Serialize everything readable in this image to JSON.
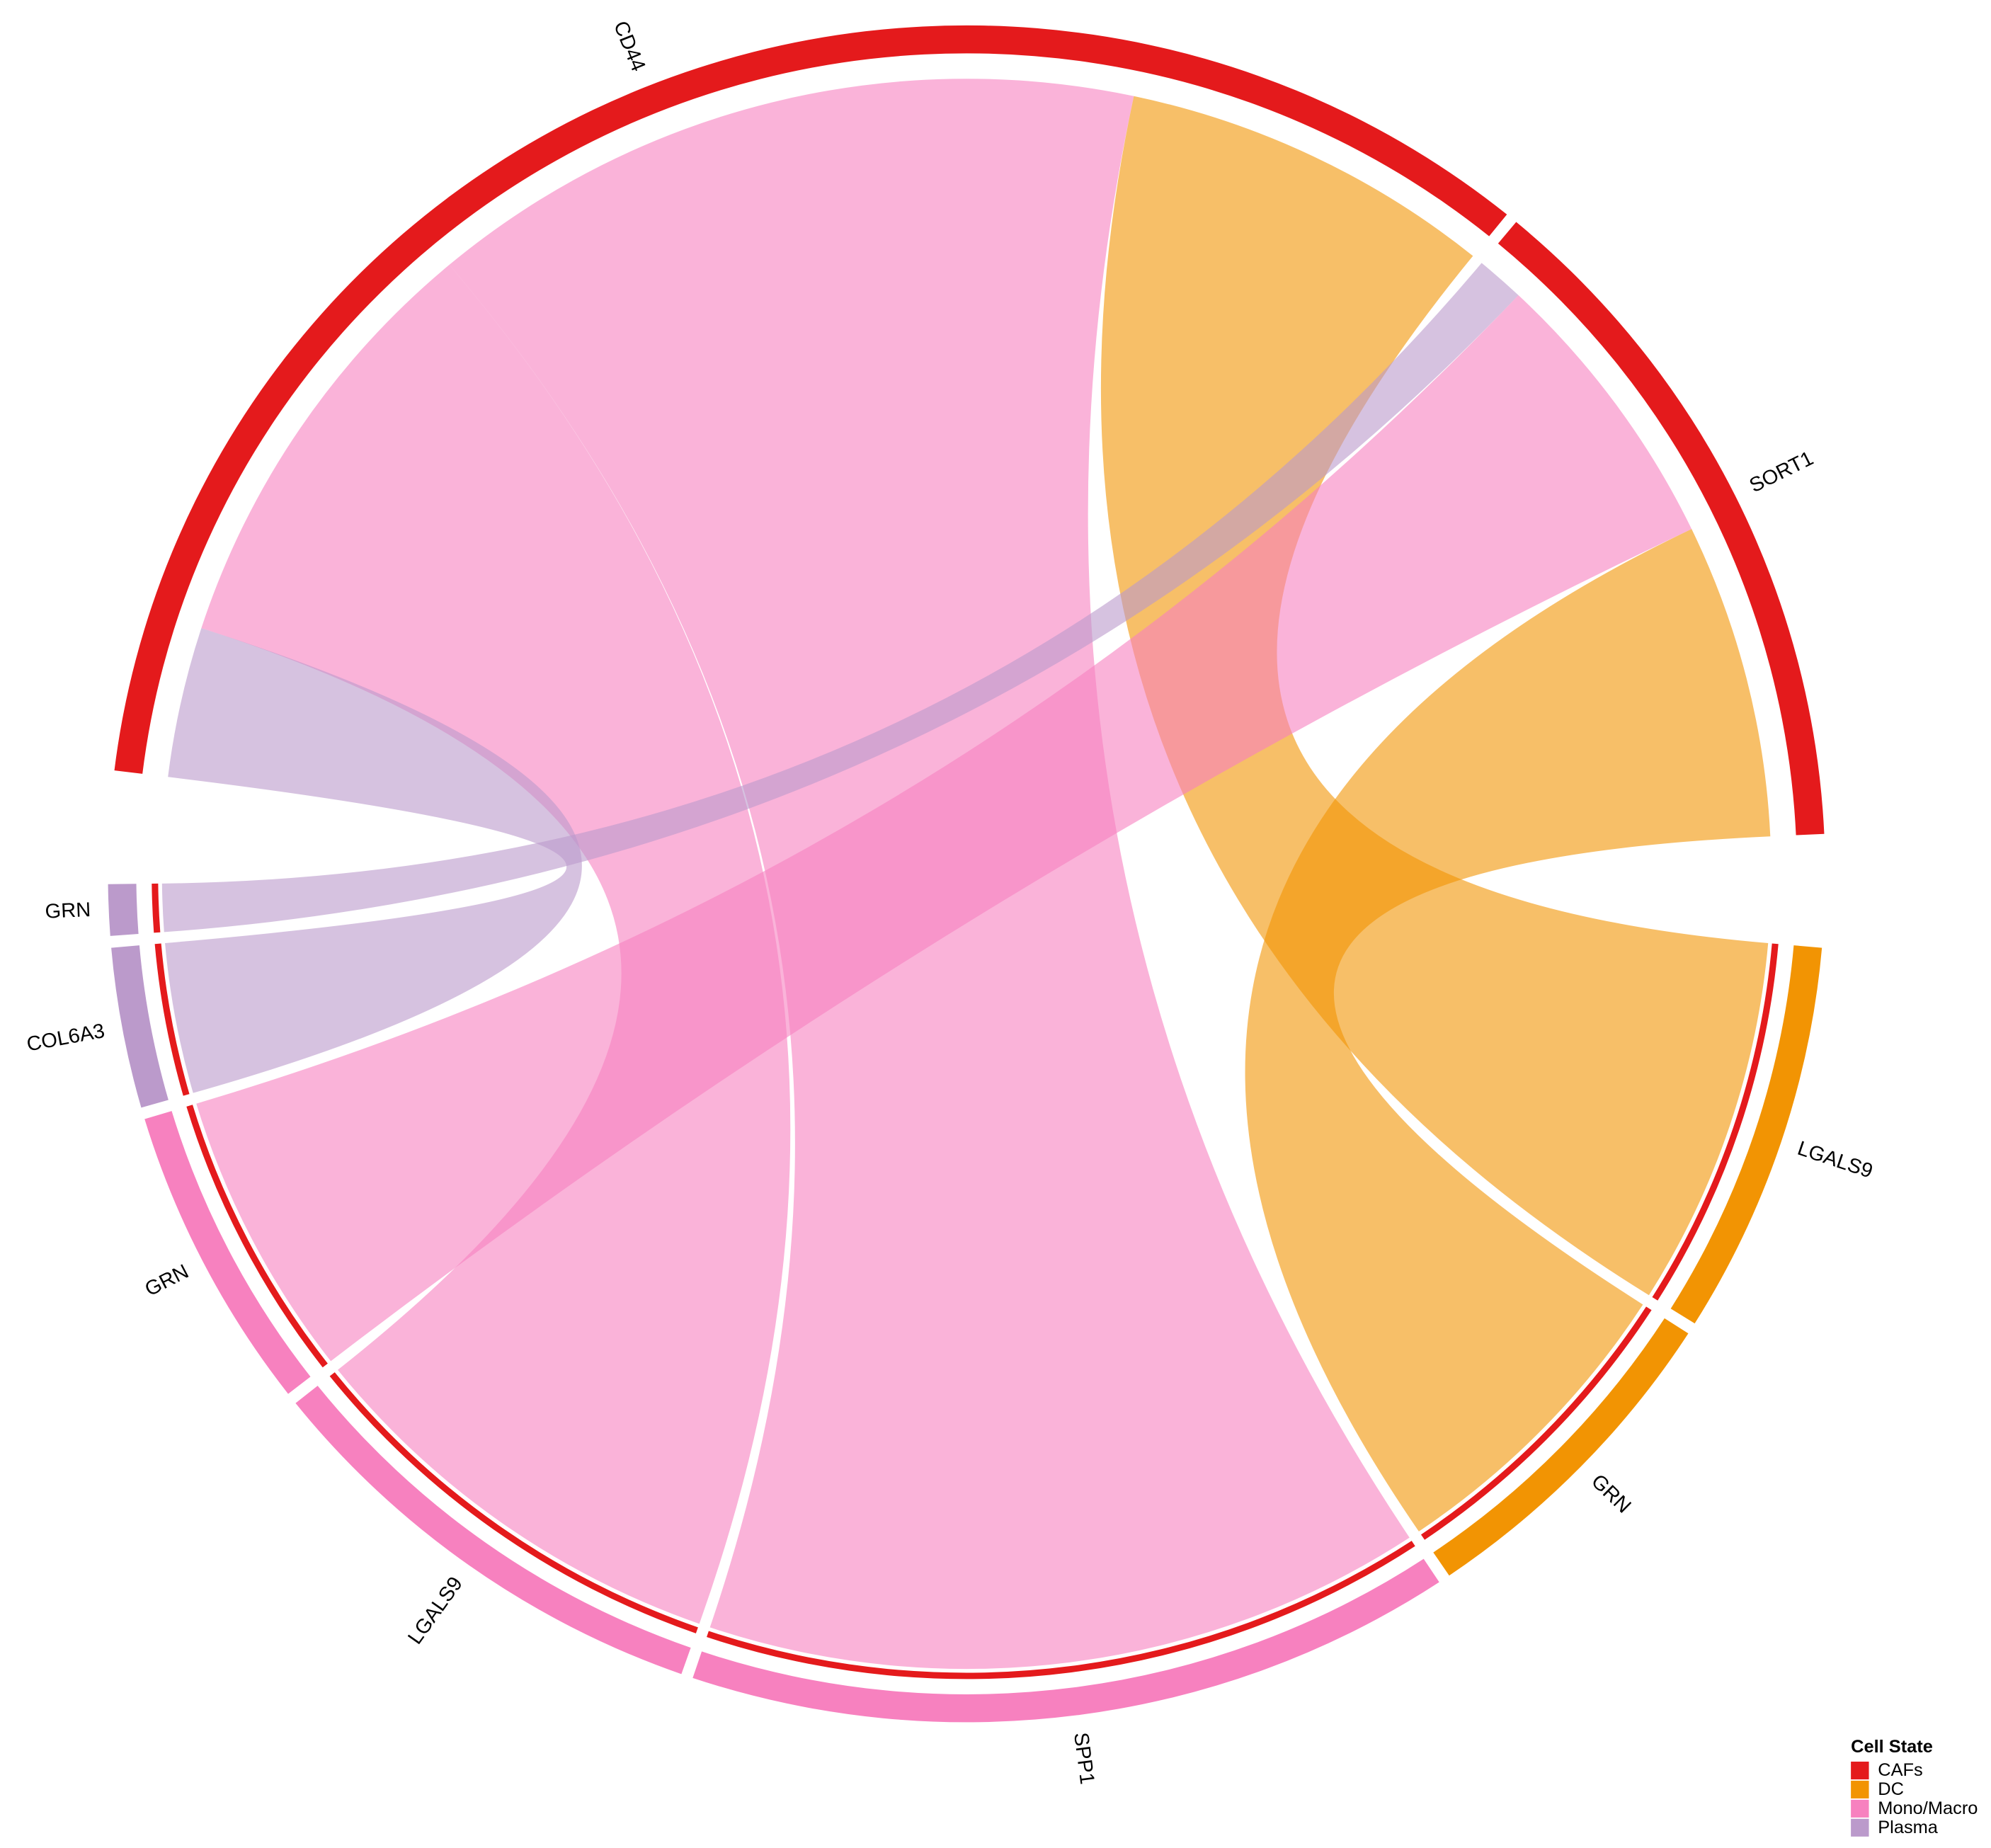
{
  "chart_data": {
    "type": "chord",
    "legend_title": "Cell State",
    "groups": [
      {
        "name": "CAFs",
        "color": "#e41a1c"
      },
      {
        "name": "DC",
        "color": "#f29403"
      },
      {
        "name": "Mono/Macro",
        "color": "#f781bf"
      },
      {
        "name": "Plasma",
        "color": "#bb9acb"
      }
    ],
    "sectors": [
      {
        "label": "CD44",
        "group": "CAFs"
      },
      {
        "label": "SORT1",
        "group": "CAFs"
      },
      {
        "label": "LGALS9",
        "group": "DC"
      },
      {
        "label": "GRN",
        "group": "DC"
      },
      {
        "label": "SPP1",
        "group": "Mono/Macro"
      },
      {
        "label": "LGALS9",
        "group": "Mono/Macro"
      },
      {
        "label": "GRN",
        "group": "Mono/Macro"
      },
      {
        "label": "COL6A3",
        "group": "Plasma"
      },
      {
        "label": "GRN",
        "group": "Plasma"
      }
    ],
    "links": [
      {
        "ligand": "SPP1",
        "sender": "Mono/Macro",
        "receptor": "CD44",
        "receiver": "CAFs",
        "value": 52
      },
      {
        "ligand": "LGALS9",
        "sender": "Mono/Macro",
        "receptor": "CD44",
        "receiver": "CAFs",
        "value": 32
      },
      {
        "ligand": "COL6A3",
        "sender": "Plasma",
        "receptor": "CD44",
        "receiver": "CAFs",
        "value": 11
      },
      {
        "ligand": "LGALS9",
        "sender": "DC",
        "receptor": "CD44",
        "receiver": "CAFs",
        "value": 27
      },
      {
        "ligand": "GRN",
        "sender": "DC",
        "receptor": "SORT1",
        "receiver": "CAFs",
        "value": 23
      },
      {
        "ligand": "GRN",
        "sender": "Mono/Macro",
        "receptor": "SORT1",
        "receiver": "CAFs",
        "value": 21
      },
      {
        "ligand": "GRN",
        "sender": "Plasma",
        "receptor": "SORT1",
        "receiver": "CAFs",
        "value": 3.5
      }
    ]
  }
}
